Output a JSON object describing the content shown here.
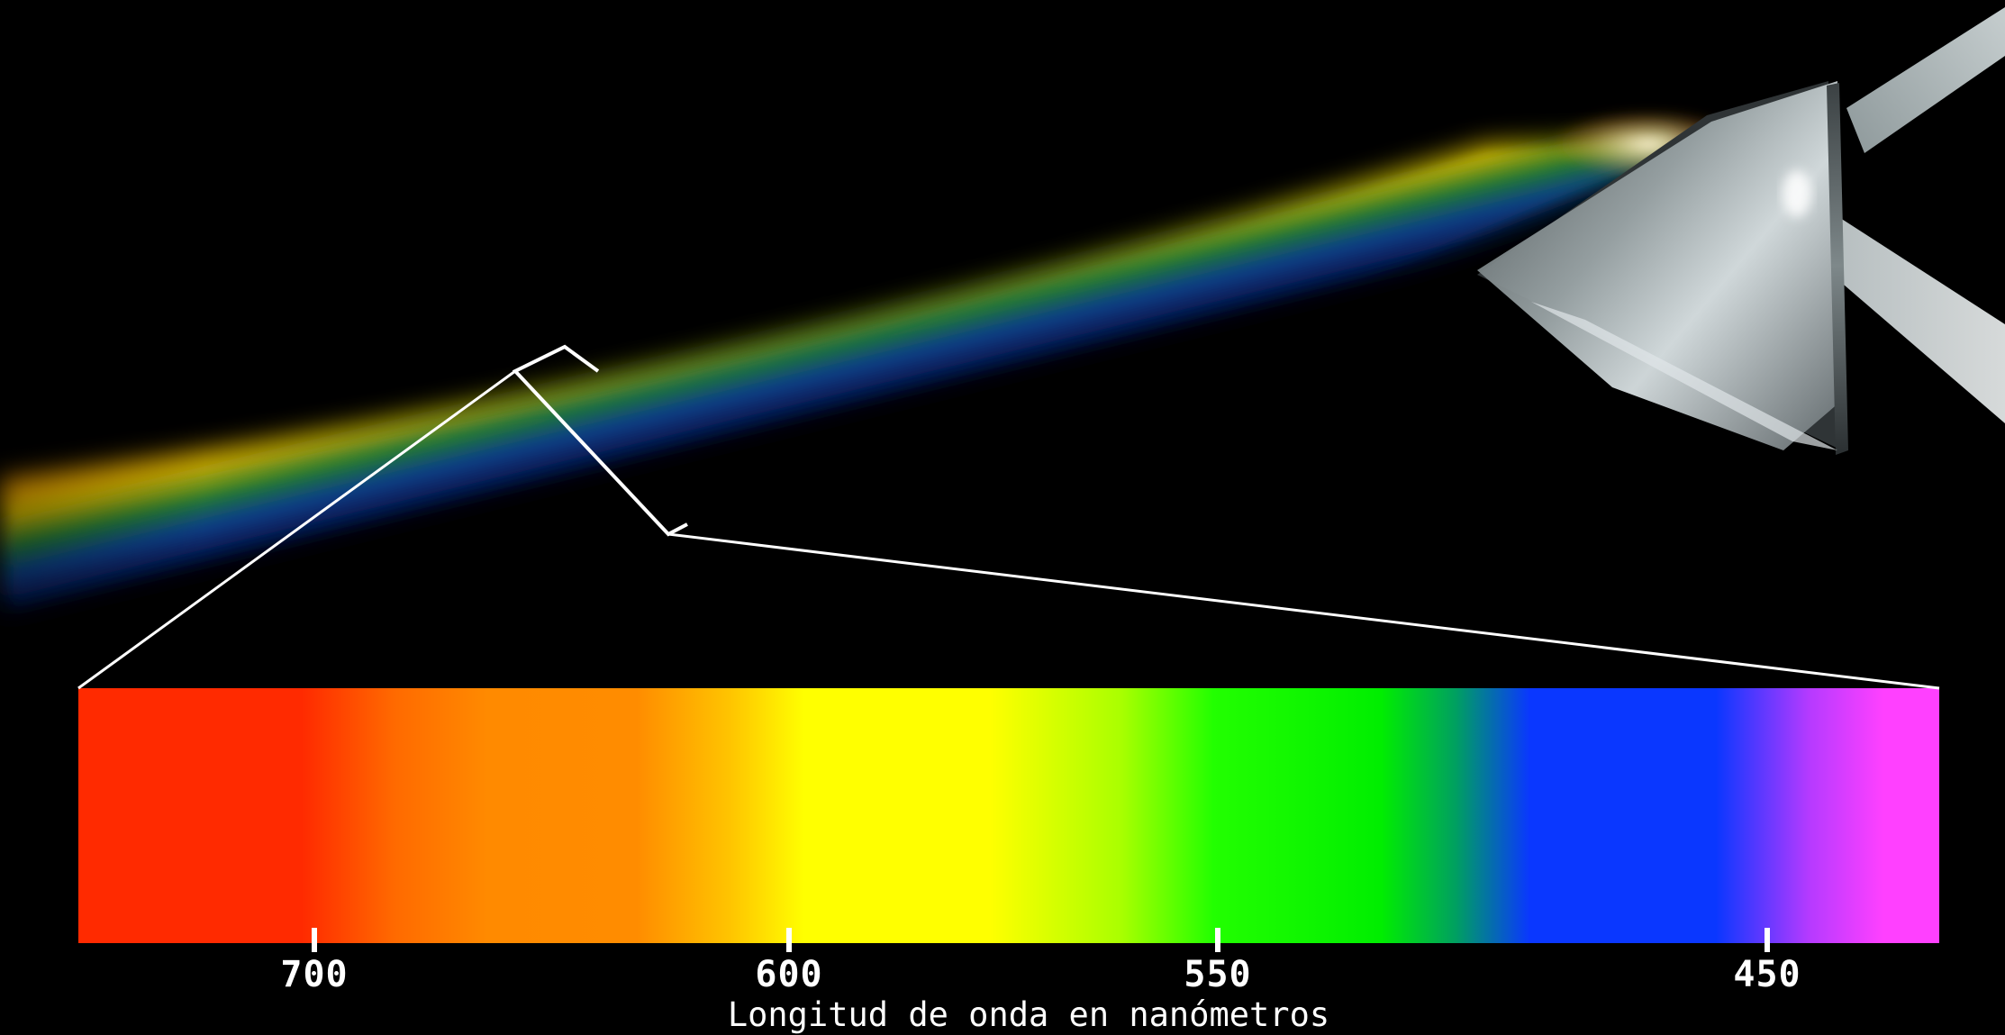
{
  "axis": {
    "title": "Longitud de onda en nanómetros",
    "ticks": [
      {
        "label": "700",
        "value": 700
      },
      {
        "label": "600",
        "value": 600
      },
      {
        "label": "550",
        "value": 550
      },
      {
        "label": "450",
        "value": 450
      }
    ]
  },
  "colors": {
    "background": "#000000",
    "annotation": "#ffffff",
    "red": "#ff2a00",
    "orange": "#ff8a00",
    "yellow": "#ffff00",
    "green": "#00ee00",
    "blue": "#0a37ff",
    "violet": "#ff40ff"
  }
}
